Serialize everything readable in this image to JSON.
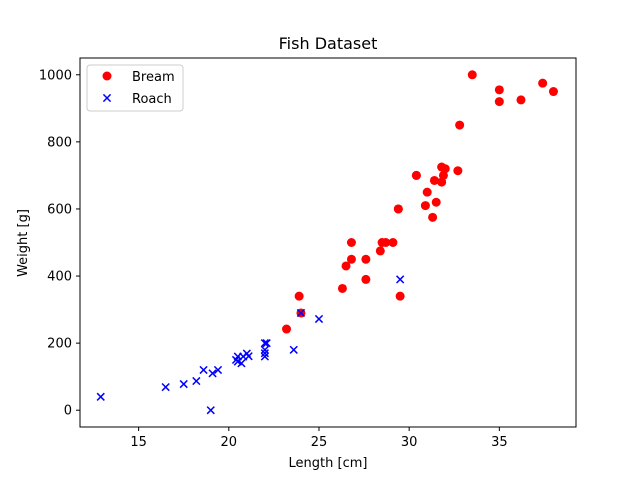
{
  "chart_data": {
    "type": "scatter",
    "title": "Fish Dataset",
    "xlabel": "Length [cm]",
    "ylabel": "Weight [g]",
    "xlim": [
      11.75,
      39.25
    ],
    "ylim": [
      -50,
      1050
    ],
    "xticks": [
      15,
      20,
      25,
      30,
      35
    ],
    "yticks": [
      0,
      200,
      400,
      600,
      800,
      1000
    ],
    "grid": false,
    "legend_position": "top-left",
    "series": [
      {
        "name": "Bream",
        "marker": "circle",
        "color": "#ff0000",
        "points": [
          [
            23.2,
            242
          ],
          [
            24.0,
            290
          ],
          [
            23.9,
            340
          ],
          [
            26.3,
            363
          ],
          [
            26.5,
            430
          ],
          [
            26.8,
            450
          ],
          [
            26.8,
            500
          ],
          [
            27.6,
            390
          ],
          [
            27.6,
            450
          ],
          [
            28.5,
            500
          ],
          [
            28.4,
            475
          ],
          [
            28.7,
            500
          ],
          [
            29.1,
            500
          ],
          [
            29.5,
            340
          ],
          [
            29.4,
            600
          ],
          [
            29.4,
            600
          ],
          [
            30.4,
            700
          ],
          [
            30.4,
            700
          ],
          [
            30.9,
            610
          ],
          [
            31.0,
            650
          ],
          [
            31.3,
            575
          ],
          [
            31.4,
            685
          ],
          [
            31.5,
            620
          ],
          [
            31.8,
            680
          ],
          [
            31.9,
            700
          ],
          [
            31.8,
            725
          ],
          [
            32.0,
            720
          ],
          [
            32.7,
            714
          ],
          [
            32.8,
            850
          ],
          [
            33.5,
            1000
          ],
          [
            35.0,
            920
          ],
          [
            35.0,
            955
          ],
          [
            36.2,
            925
          ],
          [
            37.4,
            975
          ],
          [
            38.0,
            950
          ]
        ]
      },
      {
        "name": "Roach",
        "marker": "x",
        "color": "#0000ff",
        "points": [
          [
            12.9,
            40
          ],
          [
            16.5,
            69
          ],
          [
            17.5,
            78
          ],
          [
            18.2,
            87
          ],
          [
            18.6,
            120
          ],
          [
            19.0,
            0
          ],
          [
            19.1,
            110
          ],
          [
            19.4,
            120
          ],
          [
            20.4,
            150
          ],
          [
            20.5,
            145
          ],
          [
            20.5,
            160
          ],
          [
            20.7,
            140
          ],
          [
            20.8,
            160
          ],
          [
            21.0,
            169
          ],
          [
            21.1,
            161
          ],
          [
            22.0,
            200
          ],
          [
            22.0,
            180
          ],
          [
            22.0,
            160
          ],
          [
            22.0,
            170
          ],
          [
            22.1,
            200
          ],
          [
            23.6,
            180
          ],
          [
            24.0,
            290
          ],
          [
            25.0,
            272
          ],
          [
            29.5,
            390
          ]
        ]
      }
    ]
  }
}
